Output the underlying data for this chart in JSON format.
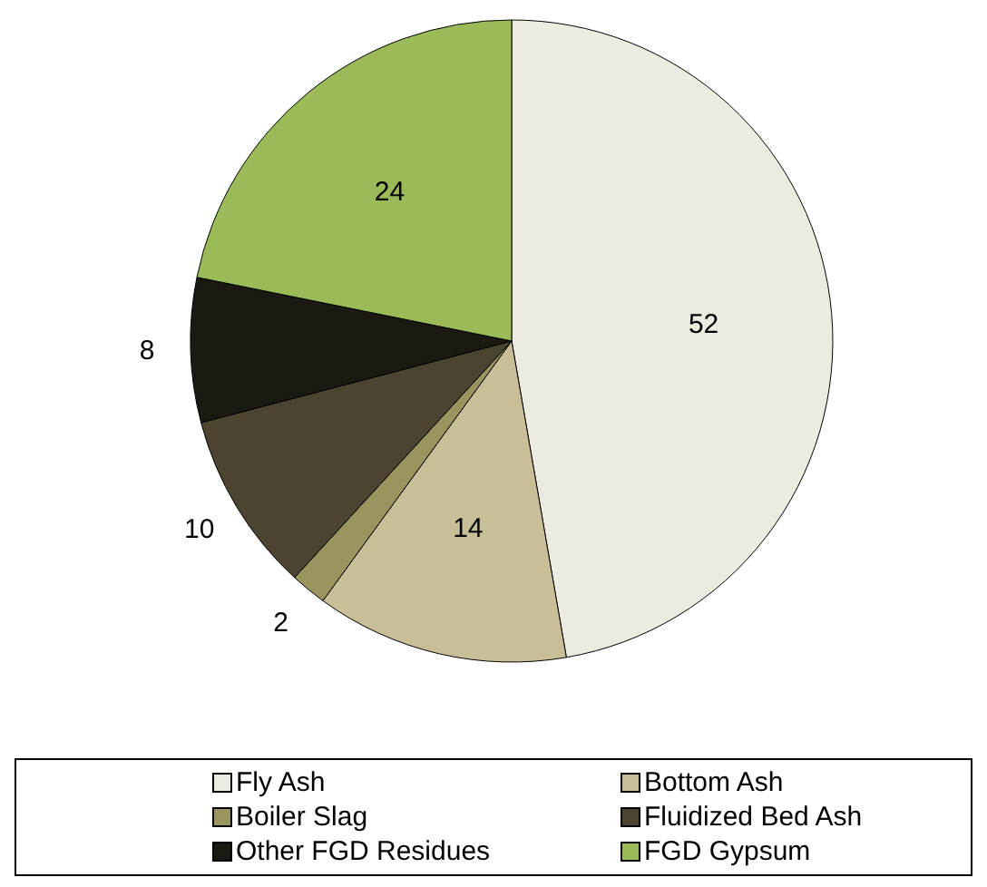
{
  "chart_data": {
    "type": "pie",
    "categories": [
      "Fly Ash",
      "Bottom Ash",
      "Boiler Slag",
      "Fluidized Bed Ash",
      "Other FGD Residues",
      "FGD Gypsum"
    ],
    "values": [
      52,
      14,
      2,
      10,
      8,
      24
    ],
    "colors": [
      "#ecebe0",
      "#c8bf98",
      "#9a955f",
      "#4b4430",
      "#1a1a12",
      "#9bbb59"
    ],
    "data_labels": true,
    "legend": "bottom"
  }
}
